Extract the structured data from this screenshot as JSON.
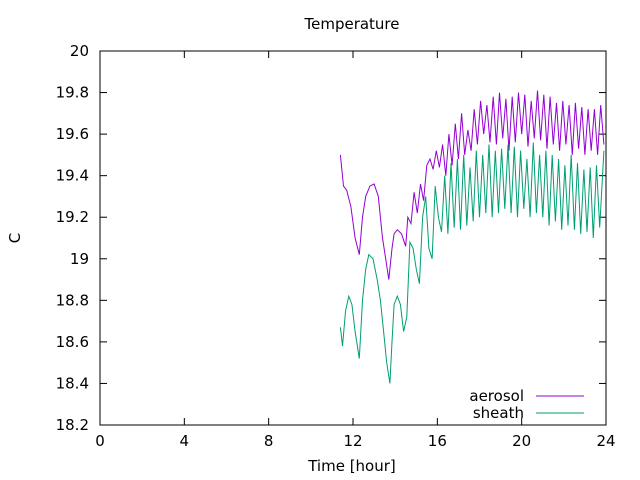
{
  "chart_data": {
    "type": "line",
    "title": "Temperature",
    "xlabel": "Time [hour]",
    "ylabel": "C",
    "xlim": [
      0,
      24
    ],
    "ylim": [
      18.2,
      20
    ],
    "x_ticks": [
      0,
      4,
      8,
      12,
      16,
      20,
      24
    ],
    "x_tick_labels": [
      "0",
      "4",
      "8",
      "12",
      "16",
      "20",
      "24"
    ],
    "y_ticks": [
      18.2,
      18.4,
      18.6,
      18.8,
      19,
      19.2,
      19.4,
      19.6,
      19.8,
      20
    ],
    "y_tick_labels": [
      "18.2",
      "18.4",
      "18.6",
      "18.8",
      "19",
      "19.2",
      "19.4",
      "19.6",
      "19.8",
      "20"
    ],
    "grid": false,
    "legend_position": "bottom-right",
    "series": [
      {
        "name": "aerosol",
        "color": "#9400d3",
        "x": [
          11.4,
          11.55,
          11.7,
          11.9,
          12.1,
          12.3,
          12.45,
          12.6,
          12.8,
          13.0,
          13.2,
          13.4,
          13.55,
          13.7,
          13.85,
          13.95,
          14.1,
          14.3,
          14.5,
          14.6,
          14.75,
          14.9,
          15.05,
          15.2,
          15.35,
          15.5,
          15.65,
          15.8,
          15.95,
          16.1,
          16.25,
          16.4,
          16.55,
          16.7,
          16.85,
          17.0,
          17.15,
          17.3,
          17.45,
          17.6,
          17.75,
          17.9,
          18.05,
          18.2,
          18.35,
          18.5,
          18.65,
          18.8,
          18.95,
          19.1,
          19.25,
          19.4,
          19.55,
          19.7,
          19.85,
          20.0,
          20.15,
          20.3,
          20.45,
          20.6,
          20.75,
          20.9,
          21.05,
          21.2,
          21.35,
          21.5,
          21.65,
          21.8,
          21.95,
          22.1,
          22.25,
          22.4,
          22.55,
          22.7,
          22.85,
          23.0,
          23.15,
          23.3,
          23.45,
          23.6,
          23.75,
          23.9
        ],
        "values": [
          19.5,
          19.35,
          19.33,
          19.25,
          19.1,
          19.02,
          19.2,
          19.3,
          19.35,
          19.36,
          19.3,
          19.1,
          19.0,
          18.9,
          19.05,
          19.12,
          19.14,
          19.12,
          19.06,
          19.2,
          19.17,
          19.32,
          19.22,
          19.36,
          19.28,
          19.45,
          19.48,
          19.43,
          19.52,
          19.44,
          19.55,
          19.4,
          19.6,
          19.45,
          19.65,
          19.48,
          19.7,
          19.5,
          19.62,
          19.52,
          19.72,
          19.55,
          19.76,
          19.6,
          19.74,
          19.56,
          19.78,
          19.55,
          19.8,
          19.58,
          19.77,
          19.52,
          19.78,
          19.56,
          19.8,
          19.6,
          19.79,
          19.54,
          19.76,
          19.58,
          19.81,
          19.57,
          19.79,
          19.53,
          19.78,
          19.55,
          19.75,
          19.52,
          19.76,
          19.55,
          19.74,
          19.5,
          19.75,
          19.53,
          19.73,
          19.5,
          19.72,
          19.52,
          19.72,
          19.5,
          19.74,
          19.55
        ]
      },
      {
        "name": "sheath",
        "color": "#009e73",
        "x": [
          11.4,
          11.5,
          11.65,
          11.8,
          11.95,
          12.1,
          12.3,
          12.45,
          12.6,
          12.75,
          12.95,
          13.15,
          13.3,
          13.45,
          13.6,
          13.75,
          13.85,
          13.95,
          14.1,
          14.25,
          14.4,
          14.55,
          14.7,
          14.85,
          15.0,
          15.15,
          15.3,
          15.45,
          15.6,
          15.75,
          15.9,
          16.05,
          16.2,
          16.35,
          16.5,
          16.65,
          16.8,
          16.95,
          17.1,
          17.25,
          17.4,
          17.55,
          17.7,
          17.85,
          18.0,
          18.15,
          18.3,
          18.45,
          18.6,
          18.75,
          18.9,
          19.05,
          19.2,
          19.35,
          19.5,
          19.65,
          19.8,
          19.95,
          20.1,
          20.25,
          20.4,
          20.55,
          20.7,
          20.85,
          21.0,
          21.15,
          21.3,
          21.45,
          21.6,
          21.75,
          21.9,
          22.05,
          22.2,
          22.35,
          22.5,
          22.65,
          22.8,
          22.95,
          23.1,
          23.25,
          23.4,
          23.55,
          23.7,
          23.9
        ],
        "values": [
          18.67,
          18.58,
          18.75,
          18.82,
          18.78,
          18.65,
          18.52,
          18.8,
          18.95,
          19.02,
          19.0,
          18.9,
          18.8,
          18.65,
          18.5,
          18.4,
          18.6,
          18.78,
          18.82,
          18.78,
          18.65,
          18.72,
          19.08,
          19.05,
          18.95,
          18.88,
          19.2,
          19.3,
          19.05,
          19.0,
          19.35,
          19.2,
          19.13,
          19.4,
          19.12,
          19.46,
          19.15,
          19.48,
          19.14,
          19.5,
          19.16,
          19.44,
          19.18,
          19.52,
          19.2,
          19.5,
          19.22,
          19.55,
          19.2,
          19.52,
          19.22,
          19.53,
          19.24,
          19.55,
          19.22,
          19.54,
          19.2,
          19.52,
          19.24,
          19.48,
          19.2,
          19.56,
          19.22,
          19.5,
          19.2,
          19.52,
          19.16,
          19.5,
          19.18,
          19.48,
          19.14,
          19.45,
          19.16,
          19.5,
          19.14,
          19.46,
          19.12,
          19.43,
          19.13,
          19.44,
          19.1,
          19.45,
          19.15,
          19.52
        ]
      }
    ]
  }
}
